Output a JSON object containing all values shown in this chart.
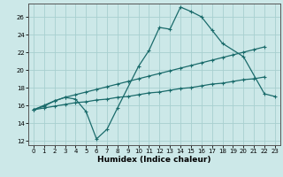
{
  "background_color": "#cce8e8",
  "grid_color": "#a8d0d0",
  "line_color": "#1a6b6b",
  "xlabel": "Humidex (Indice chaleur)",
  "xlim": [
    -0.5,
    23.5
  ],
  "ylim": [
    11.5,
    27.5
  ],
  "yticks": [
    12,
    14,
    16,
    18,
    20,
    22,
    24,
    26
  ],
  "xticks": [
    0,
    1,
    2,
    3,
    4,
    5,
    6,
    7,
    8,
    9,
    10,
    11,
    12,
    13,
    14,
    15,
    16,
    17,
    18,
    19,
    20,
    21,
    22,
    23
  ],
  "line1_x": [
    0,
    1,
    2,
    3,
    4,
    5,
    6,
    7,
    8,
    10,
    11,
    12,
    13,
    14,
    15,
    16,
    17,
    18,
    20,
    22,
    23
  ],
  "line1_y": [
    15.5,
    15.9,
    16.5,
    16.9,
    16.7,
    15.3,
    12.2,
    13.3,
    15.7,
    20.4,
    22.2,
    24.8,
    24.6,
    27.1,
    26.6,
    26.0,
    24.5,
    23.0,
    21.5,
    17.3,
    17.0
  ],
  "line2_x": [
    0,
    1,
    2,
    3,
    4,
    5,
    6,
    7,
    8,
    9,
    10,
    11,
    12,
    13,
    14,
    15,
    16,
    17,
    18,
    19,
    20,
    21,
    22
  ],
  "line2_y": [
    15.5,
    16.0,
    16.5,
    16.9,
    17.2,
    17.5,
    17.8,
    18.1,
    18.4,
    18.7,
    19.0,
    19.3,
    19.6,
    19.9,
    20.2,
    20.5,
    20.8,
    21.1,
    21.4,
    21.7,
    22.0,
    22.3,
    22.6
  ],
  "line3_x": [
    0,
    1,
    2,
    3,
    4,
    5,
    6,
    7,
    8,
    9,
    10,
    11,
    12,
    13,
    14,
    15,
    16,
    17,
    18,
    19,
    20,
    21,
    22
  ],
  "line3_y": [
    15.5,
    15.7,
    15.9,
    16.1,
    16.3,
    16.4,
    16.6,
    16.7,
    16.9,
    17.0,
    17.2,
    17.4,
    17.5,
    17.7,
    17.9,
    18.0,
    18.2,
    18.4,
    18.5,
    18.7,
    18.9,
    19.0,
    19.2
  ]
}
